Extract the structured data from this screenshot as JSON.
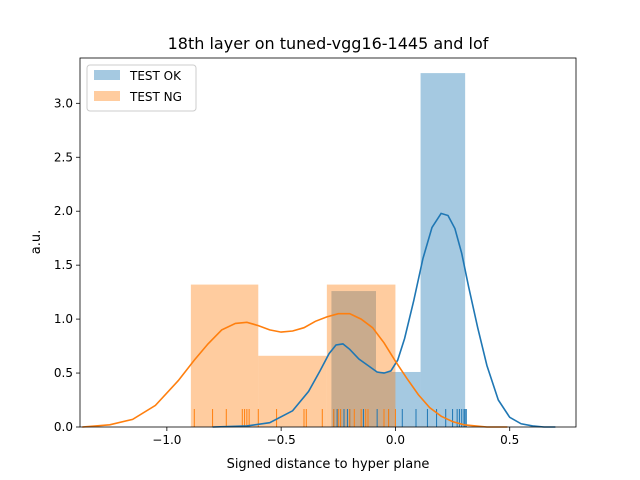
{
  "chart_data": {
    "type": "histogram",
    "title": "18th layer on tuned-vgg16-1445 and lof",
    "xlabel": "Signed distance to hyper plane",
    "ylabel": "a.u.",
    "xlim": [
      -1.38,
      0.79
    ],
    "ylim": [
      0,
      3.42
    ],
    "xticks": [
      -1.0,
      -0.5,
      0.0,
      0.5
    ],
    "xtick_labels": [
      "−1.0",
      "−0.5",
      "0.0",
      "0.5"
    ],
    "yticks": [
      0.0,
      0.5,
      1.0,
      1.5,
      2.0,
      2.5,
      3.0
    ],
    "ytick_labels": [
      "0.0",
      "0.5",
      "1.0",
      "1.5",
      "2.0",
      "2.5",
      "3.0"
    ],
    "legend_position": "top-left",
    "series": [
      {
        "name": "TEST OK",
        "color": "#1f77b4",
        "hist": {
          "bins": [
            [
              -0.28,
              -0.085
            ],
            [
              -0.085,
              0.11
            ],
            [
              0.11,
              0.305
            ]
          ],
          "heights": [
            1.26,
            0.51,
            3.28
          ]
        },
        "kde": {
          "x": [
            -0.8,
            -0.65,
            -0.55,
            -0.45,
            -0.38,
            -0.33,
            -0.29,
            -0.26,
            -0.23,
            -0.2,
            -0.16,
            -0.12,
            -0.08,
            -0.05,
            -0.02,
            0.01,
            0.04,
            0.08,
            0.12,
            0.16,
            0.2,
            0.23,
            0.26,
            0.29,
            0.32,
            0.36,
            0.4,
            0.45,
            0.5,
            0.55,
            0.6,
            0.65,
            0.7
          ],
          "y": [
            0.0,
            0.01,
            0.04,
            0.15,
            0.33,
            0.52,
            0.68,
            0.76,
            0.77,
            0.72,
            0.63,
            0.57,
            0.51,
            0.5,
            0.52,
            0.62,
            0.82,
            1.17,
            1.56,
            1.85,
            1.98,
            1.96,
            1.84,
            1.61,
            1.3,
            0.92,
            0.57,
            0.25,
            0.09,
            0.03,
            0.01,
            0.0,
            0.0
          ]
        },
        "rug": [
          -0.27,
          -0.255,
          -0.24,
          -0.225,
          -0.21,
          -0.2,
          -0.14,
          -0.08,
          -0.03,
          0.03,
          0.09,
          0.14,
          0.18,
          0.22,
          0.25,
          0.27,
          0.28,
          0.29,
          0.3,
          0.305,
          0.31
        ]
      },
      {
        "name": "TEST NG",
        "color": "#ff7f0e",
        "hist": {
          "bins": [
            [
              -0.895,
              -0.6
            ],
            [
              -0.6,
              -0.3
            ],
            [
              -0.3,
              0.0
            ]
          ],
          "heights": [
            1.32,
            0.66,
            1.32
          ]
        },
        "kde": {
          "x": [
            -1.37,
            -1.25,
            -1.15,
            -1.05,
            -0.95,
            -0.88,
            -0.82,
            -0.76,
            -0.7,
            -0.65,
            -0.6,
            -0.55,
            -0.5,
            -0.45,
            -0.4,
            -0.35,
            -0.3,
            -0.25,
            -0.2,
            -0.15,
            -0.1,
            -0.05,
            0.0,
            0.05,
            0.1,
            0.15,
            0.2,
            0.25,
            0.3,
            0.35,
            0.4,
            0.45,
            0.49
          ],
          "y": [
            0.0,
            0.02,
            0.07,
            0.2,
            0.43,
            0.62,
            0.77,
            0.9,
            0.96,
            0.97,
            0.94,
            0.9,
            0.88,
            0.89,
            0.92,
            0.98,
            1.02,
            1.05,
            1.05,
            1.0,
            0.92,
            0.78,
            0.61,
            0.45,
            0.3,
            0.18,
            0.1,
            0.05,
            0.02,
            0.01,
            0.0,
            0.0,
            0.0
          ]
        },
        "rug": [
          -0.88,
          -0.8,
          -0.74,
          -0.67,
          -0.66,
          -0.65,
          -0.64,
          -0.6,
          -0.52,
          -0.4,
          -0.39,
          -0.32,
          -0.27,
          -0.25,
          -0.24,
          -0.2,
          -0.18,
          -0.15,
          -0.13,
          -0.12,
          -0.05,
          -0.03,
          0.0
        ]
      }
    ]
  }
}
